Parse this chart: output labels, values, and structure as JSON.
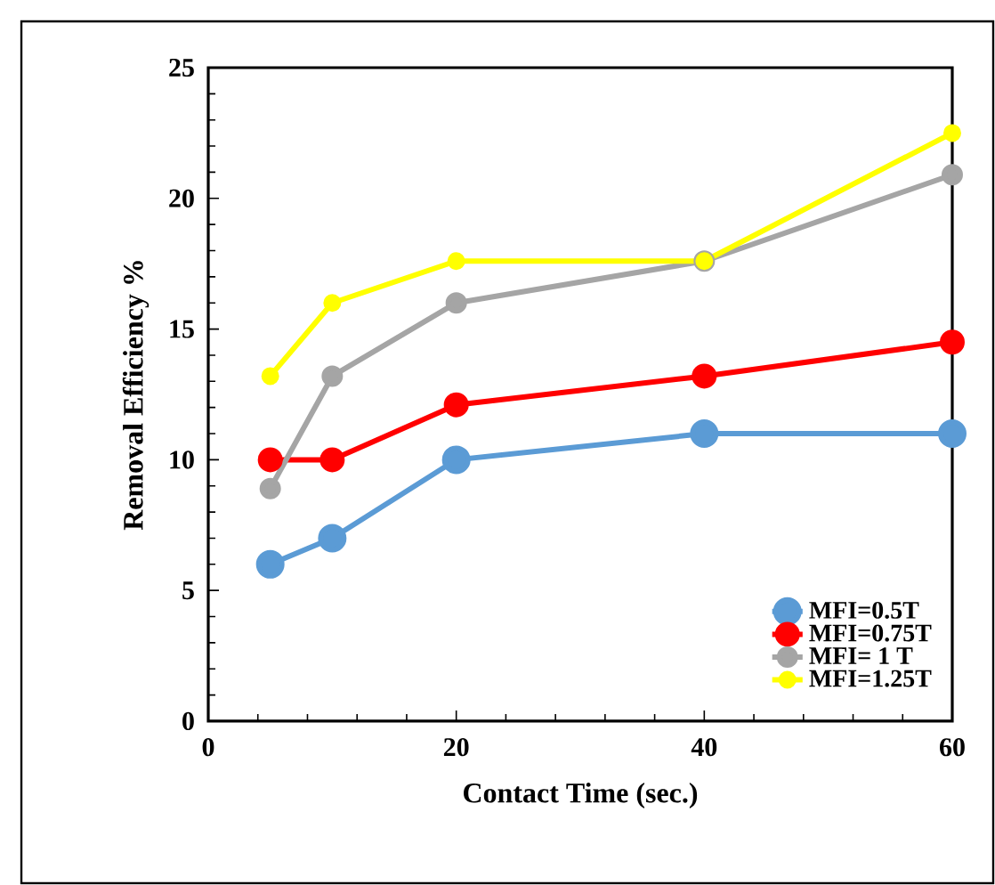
{
  "chart_data": {
    "type": "line",
    "xlabel": "Contact Time (sec.)",
    "ylabel": "Removal Efficiency %",
    "x": [
      5,
      10,
      20,
      40,
      60
    ],
    "series": [
      {
        "name": "MFI=0.5T",
        "color": "#5b9bd5",
        "values": [
          6,
          7,
          10,
          11,
          11
        ]
      },
      {
        "name": "MFI=0.75T",
        "color": "#ff0000",
        "values": [
          10,
          10,
          12.1,
          13.2,
          14.5
        ]
      },
      {
        "name": "MFI= 1 T",
        "color": "#a5a5a5",
        "values": [
          8.9,
          13.2,
          16,
          17.6,
          20.9
        ]
      },
      {
        "name": "MFI=1.25T",
        "color": "#ffff00",
        "values": [
          13.2,
          16,
          17.6,
          17.6,
          22.5
        ]
      }
    ],
    "xlim": [
      0,
      60
    ],
    "ylim": [
      0,
      25
    ],
    "xticks": [
      0,
      20,
      40,
      60
    ],
    "yticks": [
      0,
      5,
      10,
      15,
      20,
      25
    ],
    "legend": "bottom right",
    "marker": "circle"
  }
}
